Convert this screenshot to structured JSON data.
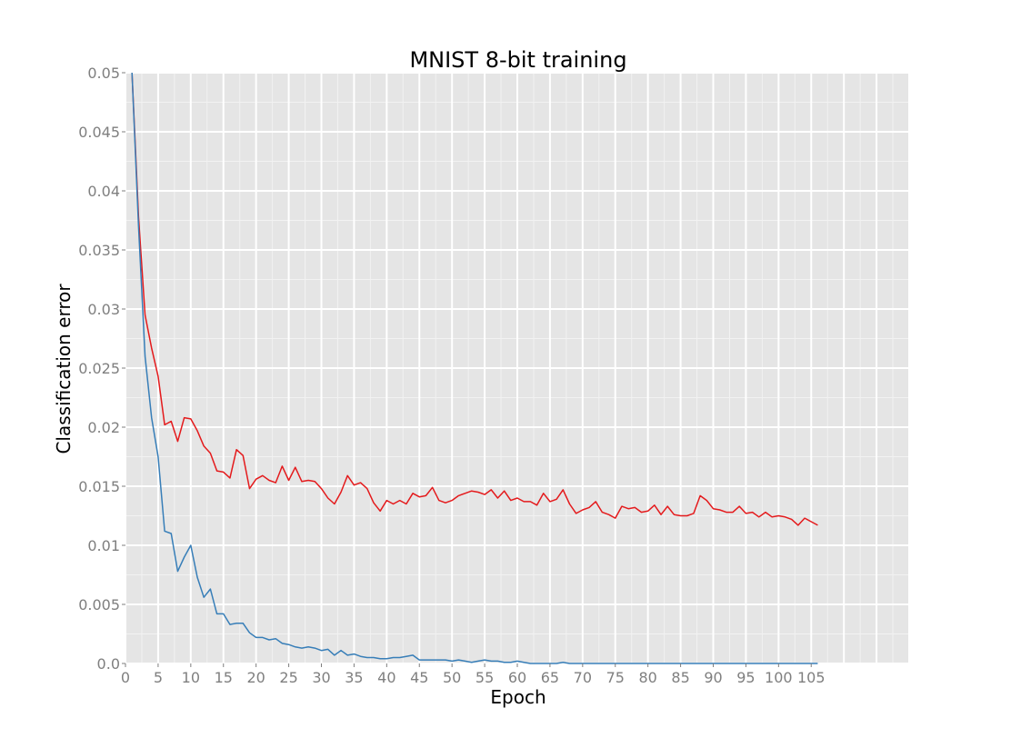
{
  "chart_data": {
    "type": "line",
    "title": "MNIST 8-bit training",
    "xlabel": "Epoch",
    "ylabel": "Classification error",
    "xlim": [
      0,
      120
    ],
    "ylim": [
      0,
      0.05
    ],
    "x_ticks": [
      0,
      5,
      10,
      15,
      20,
      25,
      30,
      35,
      40,
      45,
      50,
      55,
      60,
      65,
      70,
      75,
      80,
      85,
      90,
      95,
      100,
      105
    ],
    "x_tick_labels": [
      "0",
      "5",
      "10",
      "15",
      "20",
      "25",
      "30",
      "35",
      "40",
      "45",
      "50",
      "55",
      "60",
      "65",
      "70",
      "75",
      "80",
      "85",
      "90",
      "95",
      "100",
      "105"
    ],
    "y_ticks": [
      0,
      0.005,
      0.01,
      0.015,
      0.02,
      0.025,
      0.03,
      0.035,
      0.04,
      0.045,
      0.05
    ],
    "y_tick_labels": [
      "0.0",
      "0.005",
      "0.01",
      "0.015",
      "0.02",
      "0.025",
      "0.03",
      "0.035",
      "0.04",
      "0.045",
      "0.05"
    ],
    "grid": true,
    "background": "#e5e5e5",
    "series": [
      {
        "color": "#e41a1c",
        "x": [
          1,
          2,
          3,
          4,
          5,
          6,
          7,
          8,
          9,
          10,
          11,
          12,
          13,
          14,
          15,
          16,
          17,
          18,
          19,
          20,
          21,
          22,
          23,
          24,
          25,
          26,
          27,
          28,
          29,
          30,
          31,
          32,
          33,
          34,
          35,
          36,
          37,
          38,
          39,
          40,
          41,
          42,
          43,
          44,
          45,
          46,
          47,
          48,
          49,
          50,
          51,
          52,
          53,
          54,
          55,
          56,
          57,
          58,
          59,
          60,
          61,
          62,
          63,
          64,
          65,
          66,
          67,
          68,
          69,
          70,
          71,
          72,
          73,
          74,
          75,
          76,
          77,
          78,
          79,
          80,
          81,
          82,
          83,
          84,
          85,
          86,
          87,
          88,
          89,
          90,
          91,
          92,
          93,
          94,
          95,
          96,
          97,
          98,
          99,
          100,
          101,
          102,
          103,
          104,
          105,
          106
        ],
        "y": [
          0.0502,
          0.0378,
          0.0295,
          0.0267,
          0.0243,
          0.0202,
          0.0205,
          0.0188,
          0.0208,
          0.0207,
          0.0197,
          0.0184,
          0.0178,
          0.0163,
          0.0162,
          0.0157,
          0.0181,
          0.0176,
          0.0148,
          0.0156,
          0.0159,
          0.0155,
          0.0153,
          0.0167,
          0.0155,
          0.0166,
          0.0154,
          0.0155,
          0.0154,
          0.0148,
          0.014,
          0.0135,
          0.0145,
          0.0159,
          0.0151,
          0.0153,
          0.0148,
          0.0136,
          0.0129,
          0.0138,
          0.0135,
          0.0138,
          0.0135,
          0.0144,
          0.0141,
          0.0142,
          0.0149,
          0.0138,
          0.0136,
          0.0138,
          0.0142,
          0.0144,
          0.0146,
          0.0145,
          0.0143,
          0.0147,
          0.014,
          0.0146,
          0.0138,
          0.014,
          0.0137,
          0.0137,
          0.0134,
          0.0144,
          0.0137,
          0.0139,
          0.0147,
          0.0135,
          0.0127,
          0.013,
          0.0132,
          0.0137,
          0.0128,
          0.0126,
          0.0123,
          0.0133,
          0.0131,
          0.0132,
          0.0128,
          0.0129,
          0.0134,
          0.0126,
          0.0133,
          0.0126,
          0.0125,
          0.0125,
          0.0127,
          0.0142,
          0.0138,
          0.0131,
          0.013,
          0.0128,
          0.0128,
          0.0133,
          0.0127,
          0.0128,
          0.0124,
          0.0128,
          0.0124,
          0.0125,
          0.0124,
          0.0122,
          0.0117,
          0.0123,
          0.012,
          0.0117
        ]
      },
      {
        "color": "#377eb8",
        "x": [
          1,
          2,
          3,
          4,
          5,
          6,
          7,
          8,
          9,
          10,
          11,
          12,
          13,
          14,
          15,
          16,
          17,
          18,
          19,
          20,
          21,
          22,
          23,
          24,
          25,
          26,
          27,
          28,
          29,
          30,
          31,
          32,
          33,
          34,
          35,
          36,
          37,
          38,
          39,
          40,
          41,
          42,
          43,
          44,
          45,
          46,
          47,
          48,
          49,
          50,
          51,
          52,
          53,
          54,
          55,
          56,
          57,
          58,
          59,
          60,
          61,
          62,
          63,
          64,
          65,
          66,
          67,
          68,
          69,
          70,
          71,
          72,
          73,
          74,
          75,
          76,
          77,
          78,
          79,
          80,
          81,
          82,
          83,
          84,
          85,
          86,
          87,
          88,
          89,
          90,
          91,
          92,
          93,
          94,
          95,
          96,
          97,
          98,
          99,
          100,
          101,
          102,
          103,
          104,
          105,
          106
        ],
        "y": [
          0.0502,
          0.037,
          0.026,
          0.0208,
          0.0175,
          0.0112,
          0.011,
          0.0078,
          0.009,
          0.01,
          0.0073,
          0.0056,
          0.0063,
          0.0042,
          0.0042,
          0.0033,
          0.0034,
          0.0034,
          0.0026,
          0.0022,
          0.0022,
          0.002,
          0.0021,
          0.0017,
          0.0016,
          0.0014,
          0.0013,
          0.0014,
          0.0013,
          0.0011,
          0.0012,
          0.0007,
          0.0011,
          0.0007,
          0.0008,
          0.0006,
          0.0005,
          0.0005,
          0.0004,
          0.0004,
          0.0005,
          0.0005,
          0.0006,
          0.0007,
          0.0003,
          0.0003,
          0.0003,
          0.0003,
          0.0003,
          0.0002,
          0.0003,
          0.0002,
          0.0001,
          0.0002,
          0.0003,
          0.0002,
          0.0002,
          0.0001,
          0.0001,
          0.0002,
          0.0001,
          0.0,
          0.0,
          0.0,
          0.0,
          0.0,
          0.0001,
          0.0,
          0.0,
          0.0,
          0.0,
          0.0,
          0.0,
          0.0,
          0.0,
          0.0,
          0.0,
          0.0,
          0.0,
          0.0,
          0.0,
          0.0,
          0.0,
          0.0,
          0.0,
          0.0,
          0.0,
          0.0,
          0.0,
          0.0,
          0.0,
          0.0,
          0.0,
          0.0,
          0.0,
          0.0,
          0.0,
          0.0,
          0.0,
          0.0,
          0.0,
          0.0,
          0.0,
          0.0,
          0.0,
          0.0
        ]
      }
    ]
  }
}
